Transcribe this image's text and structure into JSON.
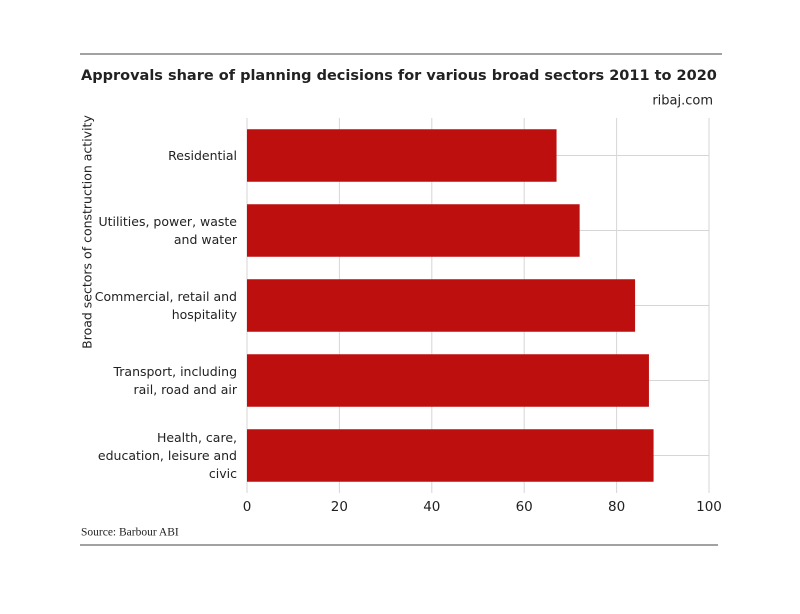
{
  "chart_data": {
    "type": "barh",
    "title": "Approvals share of planning decisions for various broad sectors 2011 to 2020",
    "subtitle": "ribaj.com",
    "y_label": "Broad sectors of construction activity",
    "source": "Source: Barbour ABI",
    "categories": [
      "Residential",
      "Utilities, power, waste and water",
      "Commercial, retail and hospitality",
      "Transport, including rail, road and air",
      "Health, care, education, leisure and civic"
    ],
    "values": [
      67,
      72,
      84,
      87,
      88
    ],
    "color": "#be0f0f",
    "xlim": [
      0,
      100
    ],
    "xticks": [
      0,
      20,
      40,
      60,
      80,
      100
    ],
    "grid": true
  }
}
